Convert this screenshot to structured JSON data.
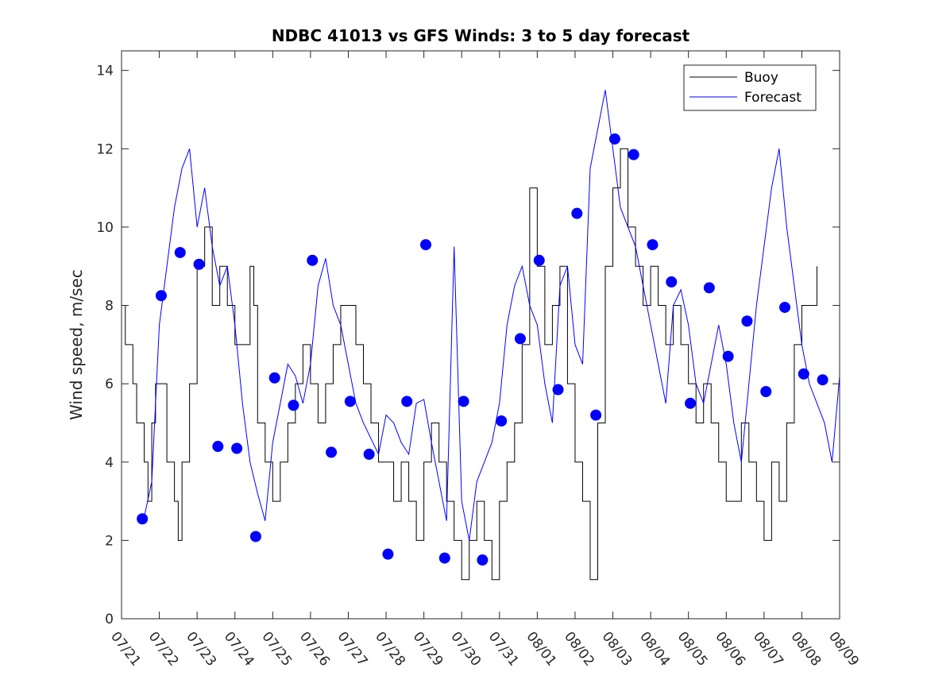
{
  "chart_data": {
    "type": "line",
    "title": "NDBC 41013 vs GFS Winds: 3 to 5 day forecast",
    "xlabel": "",
    "ylabel": "Wind speed, m/sec",
    "xlim": [
      0,
      19
    ],
    "ylim": [
      0,
      14.5
    ],
    "x_tick_labels": [
      "07/21",
      "07/22",
      "07/23",
      "07/24",
      "07/25",
      "07/26",
      "07/27",
      "07/28",
      "07/29",
      "07/30",
      "07/31",
      "08/01",
      "08/02",
      "08/03",
      "08/04",
      "08/05",
      "08/06",
      "08/07",
      "08/08",
      "08/09"
    ],
    "y_ticks": [
      0,
      2,
      4,
      6,
      8,
      10,
      12,
      14
    ],
    "grid": false,
    "legend_position": "top-right",
    "colors": {
      "buoy": "#000000",
      "forecast": "#0000ff",
      "markers": "#0000ff"
    },
    "series": [
      {
        "name": "Buoy",
        "x": [
          0,
          0.1,
          0.2,
          0.3,
          0.4,
          0.5,
          0.6,
          0.7,
          0.8,
          0.9,
          1.0,
          1.2,
          1.4,
          1.5,
          1.6,
          1.8,
          2.0,
          2.2,
          2.4,
          2.6,
          2.8,
          3.0,
          3.2,
          3.4,
          3.5,
          3.6,
          3.8,
          4.0,
          4.2,
          4.4,
          4.6,
          4.8,
          5.0,
          5.2,
          5.4,
          5.6,
          5.8,
          6.0,
          6.2,
          6.4,
          6.6,
          6.8,
          7.0,
          7.2,
          7.4,
          7.6,
          7.8,
          8.0,
          8.2,
          8.4,
          8.6,
          8.8,
          9.0,
          9.2,
          9.4,
          9.6,
          9.8,
          10.0,
          10.2,
          10.4,
          10.6,
          10.8,
          11.0,
          11.2,
          11.4,
          11.6,
          11.8,
          12.0,
          12.2,
          12.4,
          12.6,
          12.8,
          13.0,
          13.2,
          13.4,
          13.6,
          13.8,
          14.0,
          14.2,
          14.4,
          14.6,
          14.8,
          15.0,
          15.2,
          15.4,
          15.6,
          15.8,
          16.0,
          16.2,
          16.4,
          16.6,
          16.8,
          17.0,
          17.2,
          17.4,
          17.6,
          17.8,
          18.0,
          18.2,
          18.4
        ],
        "values": [
          8,
          7,
          7,
          6,
          5,
          5,
          4,
          3,
          5,
          6,
          6,
          4,
          3,
          2,
          4,
          6,
          9,
          10,
          8,
          9,
          8,
          7,
          7,
          9,
          8,
          5,
          4,
          3,
          4,
          5,
          6,
          7,
          6,
          5,
          6,
          7,
          8,
          8,
          7,
          6,
          5,
          4,
          4,
          3,
          4,
          3,
          2,
          4,
          5,
          4,
          3,
          2,
          1,
          2,
          3,
          2,
          1,
          3,
          4,
          5,
          7,
          11,
          9,
          7,
          8,
          9,
          6,
          4,
          3,
          1,
          5,
          9,
          11,
          12,
          10,
          9,
          8,
          9,
          8,
          7,
          8,
          7,
          6,
          5,
          6,
          5,
          4,
          3,
          3,
          5,
          4,
          3,
          2,
          4,
          3,
          5,
          7,
          8,
          8,
          9
        ]
      },
      {
        "name": "Forecast",
        "x": [
          0.6,
          0.8,
          1.0,
          1.2,
          1.4,
          1.6,
          1.8,
          2.0,
          2.2,
          2.4,
          2.6,
          2.8,
          3.0,
          3.2,
          3.4,
          3.6,
          3.8,
          4.0,
          4.2,
          4.4,
          4.6,
          4.8,
          5.0,
          5.2,
          5.4,
          5.6,
          5.8,
          6.0,
          6.2,
          6.4,
          6.6,
          6.8,
          7.0,
          7.2,
          7.4,
          7.6,
          7.8,
          8.0,
          8.2,
          8.4,
          8.6,
          8.8,
          9.0,
          9.2,
          9.4,
          9.6,
          9.8,
          10.0,
          10.2,
          10.4,
          10.6,
          10.8,
          11.0,
          11.2,
          11.4,
          11.6,
          11.8,
          12.0,
          12.2,
          12.4,
          12.6,
          12.8,
          13.0,
          13.2,
          13.4,
          13.6,
          13.8,
          14.0,
          14.2,
          14.4,
          14.6,
          14.8,
          15.0,
          15.2,
          15.4,
          15.6,
          15.8,
          16.0,
          16.2,
          16.4,
          16.6,
          16.8,
          17.0,
          17.2,
          17.4,
          17.6,
          17.8,
          18.0,
          18.2,
          18.4,
          18.6,
          18.8,
          19.0
        ],
        "values": [
          2.6,
          3.5,
          7.5,
          9.0,
          10.5,
          11.5,
          12.0,
          10.0,
          11.0,
          9.5,
          8.5,
          9.0,
          7.5,
          5.5,
          4.0,
          3.2,
          2.5,
          4.5,
          5.5,
          6.5,
          6.2,
          5.5,
          6.5,
          8.5,
          9.2,
          8.0,
          7.5,
          6.5,
          5.5,
          5.0,
          4.6,
          4.2,
          5.2,
          5.0,
          4.5,
          4.2,
          5.5,
          5.6,
          4.5,
          3.5,
          2.5,
          9.5,
          3.0,
          2.0,
          3.5,
          4.0,
          4.5,
          5.5,
          7.5,
          8.5,
          9.0,
          8.0,
          7.5,
          6.0,
          5.0,
          8.5,
          9.0,
          7.0,
          6.5,
          11.5,
          12.5,
          13.5,
          12.0,
          10.5,
          10.0,
          9.5,
          8.5,
          7.5,
          6.5,
          5.5,
          8.0,
          8.4,
          7.5,
          6.0,
          5.5,
          6.5,
          7.5,
          6.5,
          5.0,
          4.0,
          6.0,
          8.0,
          9.5,
          11.0,
          12.0,
          10.0,
          8.5,
          7.0,
          6.0,
          5.5,
          5.0,
          4.0,
          6.2
        ]
      }
    ],
    "markers": {
      "name": "Forecast points",
      "x": [
        0.55,
        1.05,
        1.55,
        2.05,
        2.55,
        3.05,
        3.55,
        4.05,
        4.55,
        5.05,
        5.55,
        6.05,
        6.55,
        7.05,
        7.55,
        8.05,
        8.55,
        9.05,
        9.55,
        10.05,
        10.55,
        11.05,
        11.55,
        12.05,
        12.55,
        13.05,
        13.55,
        14.05,
        14.55,
        15.05,
        15.55,
        16.05,
        16.55,
        17.05,
        17.55,
        18.05,
        18.55
      ],
      "values": [
        2.55,
        8.25,
        9.35,
        9.05,
        4.4,
        4.35,
        2.1,
        6.15,
        5.45,
        9.15,
        4.25,
        5.55,
        4.2,
        1.65,
        5.55,
        9.55,
        1.55,
        5.55,
        1.5,
        5.05,
        7.15,
        9.15,
        5.85,
        10.35,
        5.2,
        12.25,
        11.85,
        9.55,
        8.6,
        5.5,
        8.45,
        6.7,
        7.6,
        5.8,
        7.95,
        6.25,
        6.1
      ]
    }
  }
}
